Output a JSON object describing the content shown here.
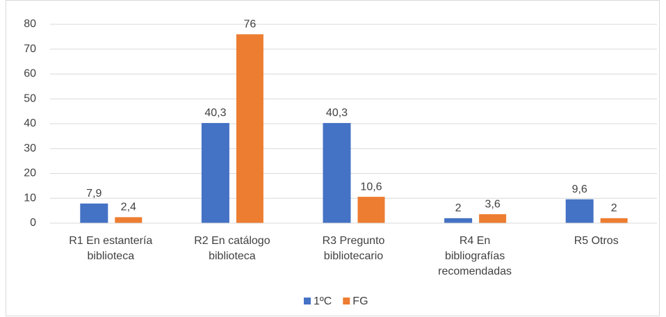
{
  "chart_data": {
    "type": "bar",
    "categories": [
      "R1 En estantería biblioteca",
      "R2 En catálogo biblioteca",
      "R3 Pregunto bibliotecario",
      "R4 En bibliografías recomendadas",
      "R5 Otros"
    ],
    "series": [
      {
        "name": "1ºC",
        "color": "#4472c4",
        "values": [
          7.9,
          40.3,
          40.3,
          2,
          9.6
        ],
        "value_labels": [
          "7,9",
          "40,3",
          "40,3",
          "2",
          "9,6"
        ]
      },
      {
        "name": "FG",
        "color": "#ed7d31",
        "values": [
          2.4,
          76,
          10.6,
          3.6,
          2
        ],
        "value_labels": [
          "2,4",
          "76",
          "10,6",
          "3,6",
          "2"
        ]
      }
    ],
    "ylim": [
      0,
      80
    ],
    "yticks": [
      0,
      10,
      20,
      30,
      40,
      50,
      60,
      70,
      80
    ],
    "grid": true,
    "legend": "bottom"
  }
}
